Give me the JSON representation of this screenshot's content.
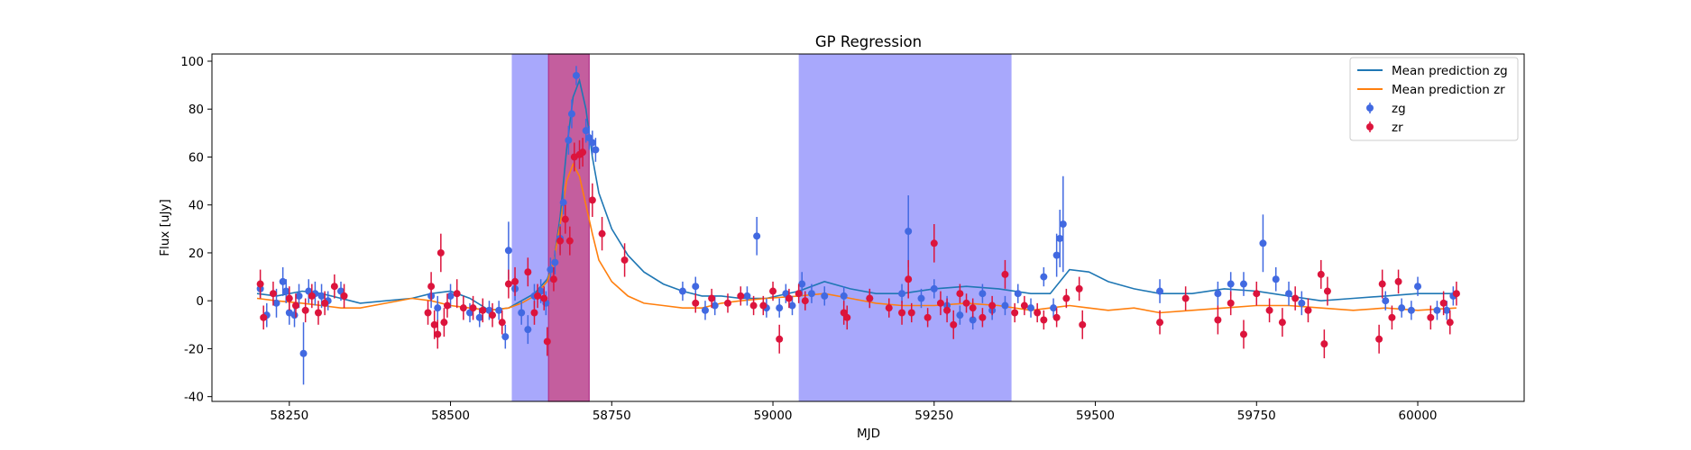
{
  "chart_data": {
    "type": "scatter",
    "title": "GP Regression",
    "xlabel": "MJD",
    "ylabel": "Flux [uJy]",
    "xlim": [
      58130,
      60165
    ],
    "ylim": [
      -42,
      103
    ],
    "xticks": [
      58250,
      58500,
      58750,
      59000,
      59250,
      59500,
      59750,
      60000
    ],
    "yticks": [
      -40,
      -20,
      0,
      20,
      40,
      60,
      80,
      100
    ],
    "grid": false,
    "legend_position": "top-right",
    "shaded_regions": [
      {
        "x0": 58595,
        "x1": 58652,
        "color": "#a8a8fc"
      },
      {
        "x0": 58652,
        "x1": 58715,
        "color": "#c45e9e",
        "edge": "#b0308a"
      },
      {
        "x0": 59040,
        "x1": 59370,
        "color": "#a8a8fc"
      }
    ],
    "lines": [
      {
        "name": "Mean prediction zg",
        "color": "#1f77b4",
        "x": [
          58200,
          58230,
          58270,
          58300,
          58330,
          58360,
          58400,
          58440,
          58470,
          58500,
          58530,
          58560,
          58590,
          58610,
          58630,
          58650,
          58660,
          58670,
          58680,
          58690,
          58700,
          58710,
          58720,
          58730,
          58750,
          58775,
          58800,
          58830,
          58860,
          58890,
          58920,
          58950,
          58990,
          59040,
          59080,
          59120,
          59160,
          59200,
          59250,
          59300,
          59350,
          59400,
          59430,
          59460,
          59490,
          59520,
          59560,
          59600,
          59650,
          59700,
          59750,
          59800,
          59850,
          59900,
          59950,
          60000,
          60060
        ],
        "y": [
          3,
          2,
          4,
          3,
          1,
          -1,
          0,
          1,
          3,
          4,
          1,
          -4,
          -3,
          0,
          3,
          9,
          16,
          35,
          63,
          85,
          92,
          80,
          60,
          45,
          30,
          19,
          12,
          7,
          4,
          2,
          2,
          1,
          1,
          4,
          8,
          5,
          3,
          3,
          5,
          6,
          5,
          3,
          3,
          13,
          12,
          8,
          5,
          3,
          3,
          5,
          4,
          2,
          0,
          1,
          2,
          3,
          3
        ]
      },
      {
        "name": "Mean prediction zr",
        "color": "#ff7f0e",
        "x": [
          58200,
          58230,
          58270,
          58300,
          58330,
          58360,
          58400,
          58440,
          58470,
          58500,
          58530,
          58560,
          58590,
          58610,
          58630,
          58650,
          58660,
          58670,
          58680,
          58690,
          58700,
          58710,
          58720,
          58730,
          58750,
          58775,
          58800,
          58830,
          58860,
          58890,
          58920,
          58950,
          58990,
          59040,
          59080,
          59120,
          59160,
          59200,
          59250,
          59300,
          59350,
          59400,
          59430,
          59460,
          59490,
          59520,
          59560,
          59600,
          59650,
          59700,
          59750,
          59800,
          59850,
          59900,
          59950,
          60000,
          60060
        ],
        "y": [
          1,
          0,
          -1,
          -2,
          -3,
          -3,
          -1,
          1,
          0,
          -2,
          -3,
          -4,
          -3,
          -1,
          2,
          8,
          16,
          32,
          50,
          57,
          52,
          40,
          28,
          17,
          8,
          2,
          -1,
          -2,
          -3,
          -3,
          -1,
          0,
          1,
          2,
          3,
          1,
          -1,
          -2,
          -2,
          -1,
          -2,
          -4,
          -3,
          -2,
          -3,
          -4,
          -3,
          -5,
          -4,
          -3,
          -2,
          -2,
          -3,
          -4,
          -3,
          -4,
          -3
        ]
      }
    ],
    "series": [
      {
        "name": "zg",
        "color": "#4169e1",
        "marker": "circle",
        "points": [
          [
            58205,
            5,
            4
          ],
          [
            58215,
            -6,
            5
          ],
          [
            58230,
            -1,
            6
          ],
          [
            58240,
            8,
            6
          ],
          [
            58245,
            4,
            5
          ],
          [
            58250,
            -5,
            5
          ],
          [
            58258,
            -6,
            5
          ],
          [
            58265,
            2,
            5
          ],
          [
            58272,
            -22,
            13
          ],
          [
            58280,
            4,
            5
          ],
          [
            58290,
            3,
            5
          ],
          [
            58300,
            2,
            5
          ],
          [
            58310,
            0,
            4
          ],
          [
            58330,
            4,
            4
          ],
          [
            58470,
            2,
            5
          ],
          [
            58480,
            -3,
            5
          ],
          [
            58500,
            2,
            5
          ],
          [
            58530,
            -5,
            4
          ],
          [
            58545,
            -7,
            4
          ],
          [
            58560,
            -4,
            4
          ],
          [
            58575,
            -4,
            4
          ],
          [
            58585,
            -15,
            5
          ],
          [
            58590,
            21,
            12
          ],
          [
            58600,
            5,
            5
          ],
          [
            58610,
            -5,
            5
          ],
          [
            58620,
            -12,
            6
          ],
          [
            58630,
            2,
            5
          ],
          [
            58640,
            4,
            5
          ],
          [
            58648,
            -1,
            5
          ],
          [
            58655,
            13,
            5
          ],
          [
            58662,
            16,
            5
          ],
          [
            58670,
            26,
            6
          ],
          [
            58675,
            41,
            5
          ],
          [
            58683,
            67,
            6
          ],
          [
            58688,
            78,
            6
          ],
          [
            58695,
            94,
            4
          ],
          [
            58710,
            71,
            5
          ],
          [
            58715,
            68,
            5
          ],
          [
            58720,
            66,
            5
          ],
          [
            58725,
            63,
            5
          ],
          [
            58860,
            4,
            4
          ],
          [
            58880,
            6,
            4
          ],
          [
            58895,
            -4,
            4
          ],
          [
            58910,
            -2,
            4
          ],
          [
            58960,
            2,
            4
          ],
          [
            58975,
            27,
            8
          ],
          [
            58990,
            -3,
            4
          ],
          [
            59010,
            -3,
            4
          ],
          [
            59020,
            3,
            4
          ],
          [
            59030,
            -2,
            4
          ],
          [
            59045,
            7,
            5
          ],
          [
            59060,
            3,
            4
          ],
          [
            59080,
            2,
            4
          ],
          [
            59110,
            2,
            4
          ],
          [
            59150,
            1,
            4
          ],
          [
            59200,
            3,
            4
          ],
          [
            59210,
            29,
            15
          ],
          [
            59230,
            1,
            4
          ],
          [
            59250,
            5,
            4
          ],
          [
            59270,
            -2,
            4
          ],
          [
            59290,
            -6,
            4
          ],
          [
            59310,
            -8,
            4
          ],
          [
            59325,
            3,
            4
          ],
          [
            59340,
            -4,
            4
          ],
          [
            59360,
            -2,
            4
          ],
          [
            59380,
            3,
            4
          ],
          [
            59400,
            -3,
            4
          ],
          [
            59420,
            10,
            4
          ],
          [
            59435,
            -3,
            4
          ],
          [
            59440,
            19,
            9
          ],
          [
            59445,
            26,
            12
          ],
          [
            59450,
            32,
            20
          ],
          [
            59600,
            4,
            5
          ],
          [
            59690,
            3,
            5
          ],
          [
            59710,
            7,
            5
          ],
          [
            59730,
            7,
            5
          ],
          [
            59760,
            24,
            12
          ],
          [
            59780,
            9,
            5
          ],
          [
            59800,
            3,
            5
          ],
          [
            59820,
            -1,
            5
          ],
          [
            59950,
            0,
            4
          ],
          [
            59975,
            -3,
            4
          ],
          [
            59990,
            -4,
            4
          ],
          [
            60000,
            6,
            4
          ],
          [
            60030,
            -4,
            4
          ],
          [
            60045,
            -4,
            4
          ],
          [
            60055,
            2,
            4
          ]
        ]
      },
      {
        "name": "zr",
        "color": "#dc143c",
        "marker": "circle",
        "points": [
          [
            58205,
            7,
            6
          ],
          [
            58210,
            -7,
            5
          ],
          [
            58225,
            3,
            5
          ],
          [
            58250,
            1,
            5
          ],
          [
            58260,
            -2,
            5
          ],
          [
            58275,
            -4,
            5
          ],
          [
            58285,
            2,
            5
          ],
          [
            58295,
            -5,
            5
          ],
          [
            58305,
            -1,
            5
          ],
          [
            58320,
            6,
            5
          ],
          [
            58335,
            2,
            5
          ],
          [
            58465,
            -5,
            5
          ],
          [
            58470,
            6,
            6
          ],
          [
            58475,
            -10,
            6
          ],
          [
            58480,
            -14,
            6
          ],
          [
            58485,
            20,
            8
          ],
          [
            58490,
            -9,
            6
          ],
          [
            58495,
            -2,
            5
          ],
          [
            58510,
            3,
            6
          ],
          [
            58520,
            -3,
            5
          ],
          [
            58535,
            -3,
            5
          ],
          [
            58550,
            -4,
            5
          ],
          [
            58565,
            -6,
            5
          ],
          [
            58580,
            -9,
            5
          ],
          [
            58590,
            7,
            6
          ],
          [
            58600,
            8,
            6
          ],
          [
            58620,
            12,
            6
          ],
          [
            58630,
            -5,
            5
          ],
          [
            58635,
            2,
            5
          ],
          [
            58645,
            1,
            5
          ],
          [
            58650,
            -17,
            6
          ],
          [
            58660,
            9,
            5
          ],
          [
            58670,
            25,
            6
          ],
          [
            58678,
            34,
            6
          ],
          [
            58685,
            25,
            6
          ],
          [
            58692,
            60,
            6
          ],
          [
            58700,
            61,
            6
          ],
          [
            58705,
            62,
            6
          ],
          [
            58720,
            42,
            7
          ],
          [
            58735,
            28,
            7
          ],
          [
            58770,
            17,
            7
          ],
          [
            58880,
            -1,
            4
          ],
          [
            58905,
            1,
            4
          ],
          [
            58930,
            -1,
            4
          ],
          [
            58950,
            2,
            4
          ],
          [
            58970,
            -2,
            4
          ],
          [
            58985,
            -2,
            4
          ],
          [
            59000,
            4,
            4
          ],
          [
            59010,
            -16,
            6
          ],
          [
            59025,
            1,
            4
          ],
          [
            59040,
            3,
            4
          ],
          [
            59050,
            0,
            4
          ],
          [
            59110,
            -5,
            5
          ],
          [
            59115,
            -7,
            5
          ],
          [
            59150,
            1,
            4
          ],
          [
            59180,
            -3,
            4
          ],
          [
            59200,
            -5,
            5
          ],
          [
            59210,
            9,
            8
          ],
          [
            59215,
            -5,
            4
          ],
          [
            59240,
            -7,
            4
          ],
          [
            59250,
            24,
            8
          ],
          [
            59260,
            -1,
            5
          ],
          [
            59270,
            -4,
            5
          ],
          [
            59280,
            -10,
            6
          ],
          [
            59290,
            3,
            4
          ],
          [
            59300,
            -1,
            4
          ],
          [
            59310,
            -3,
            4
          ],
          [
            59325,
            -7,
            4
          ],
          [
            59340,
            -2,
            4
          ],
          [
            59360,
            11,
            6
          ],
          [
            59375,
            -5,
            4
          ],
          [
            59390,
            -2,
            4
          ],
          [
            59410,
            -5,
            4
          ],
          [
            59420,
            -8,
            4
          ],
          [
            59440,
            -7,
            4
          ],
          [
            59455,
            1,
            4
          ],
          [
            59475,
            5,
            5
          ],
          [
            59480,
            -10,
            6
          ],
          [
            59600,
            -9,
            5
          ],
          [
            59640,
            1,
            5
          ],
          [
            59690,
            -8,
            6
          ],
          [
            59710,
            -1,
            5
          ],
          [
            59730,
            -14,
            6
          ],
          [
            59750,
            3,
            5
          ],
          [
            59770,
            -4,
            5
          ],
          [
            59790,
            -9,
            6
          ],
          [
            59810,
            1,
            5
          ],
          [
            59830,
            -4,
            5
          ],
          [
            59850,
            11,
            6
          ],
          [
            59855,
            -18,
            6
          ],
          [
            59860,
            4,
            6
          ],
          [
            59940,
            -16,
            6
          ],
          [
            59945,
            7,
            6
          ],
          [
            59960,
            -7,
            5
          ],
          [
            59970,
            8,
            5
          ],
          [
            60020,
            -7,
            5
          ],
          [
            60040,
            -1,
            5
          ],
          [
            60050,
            -9,
            5
          ],
          [
            60060,
            3,
            5
          ]
        ]
      }
    ]
  }
}
